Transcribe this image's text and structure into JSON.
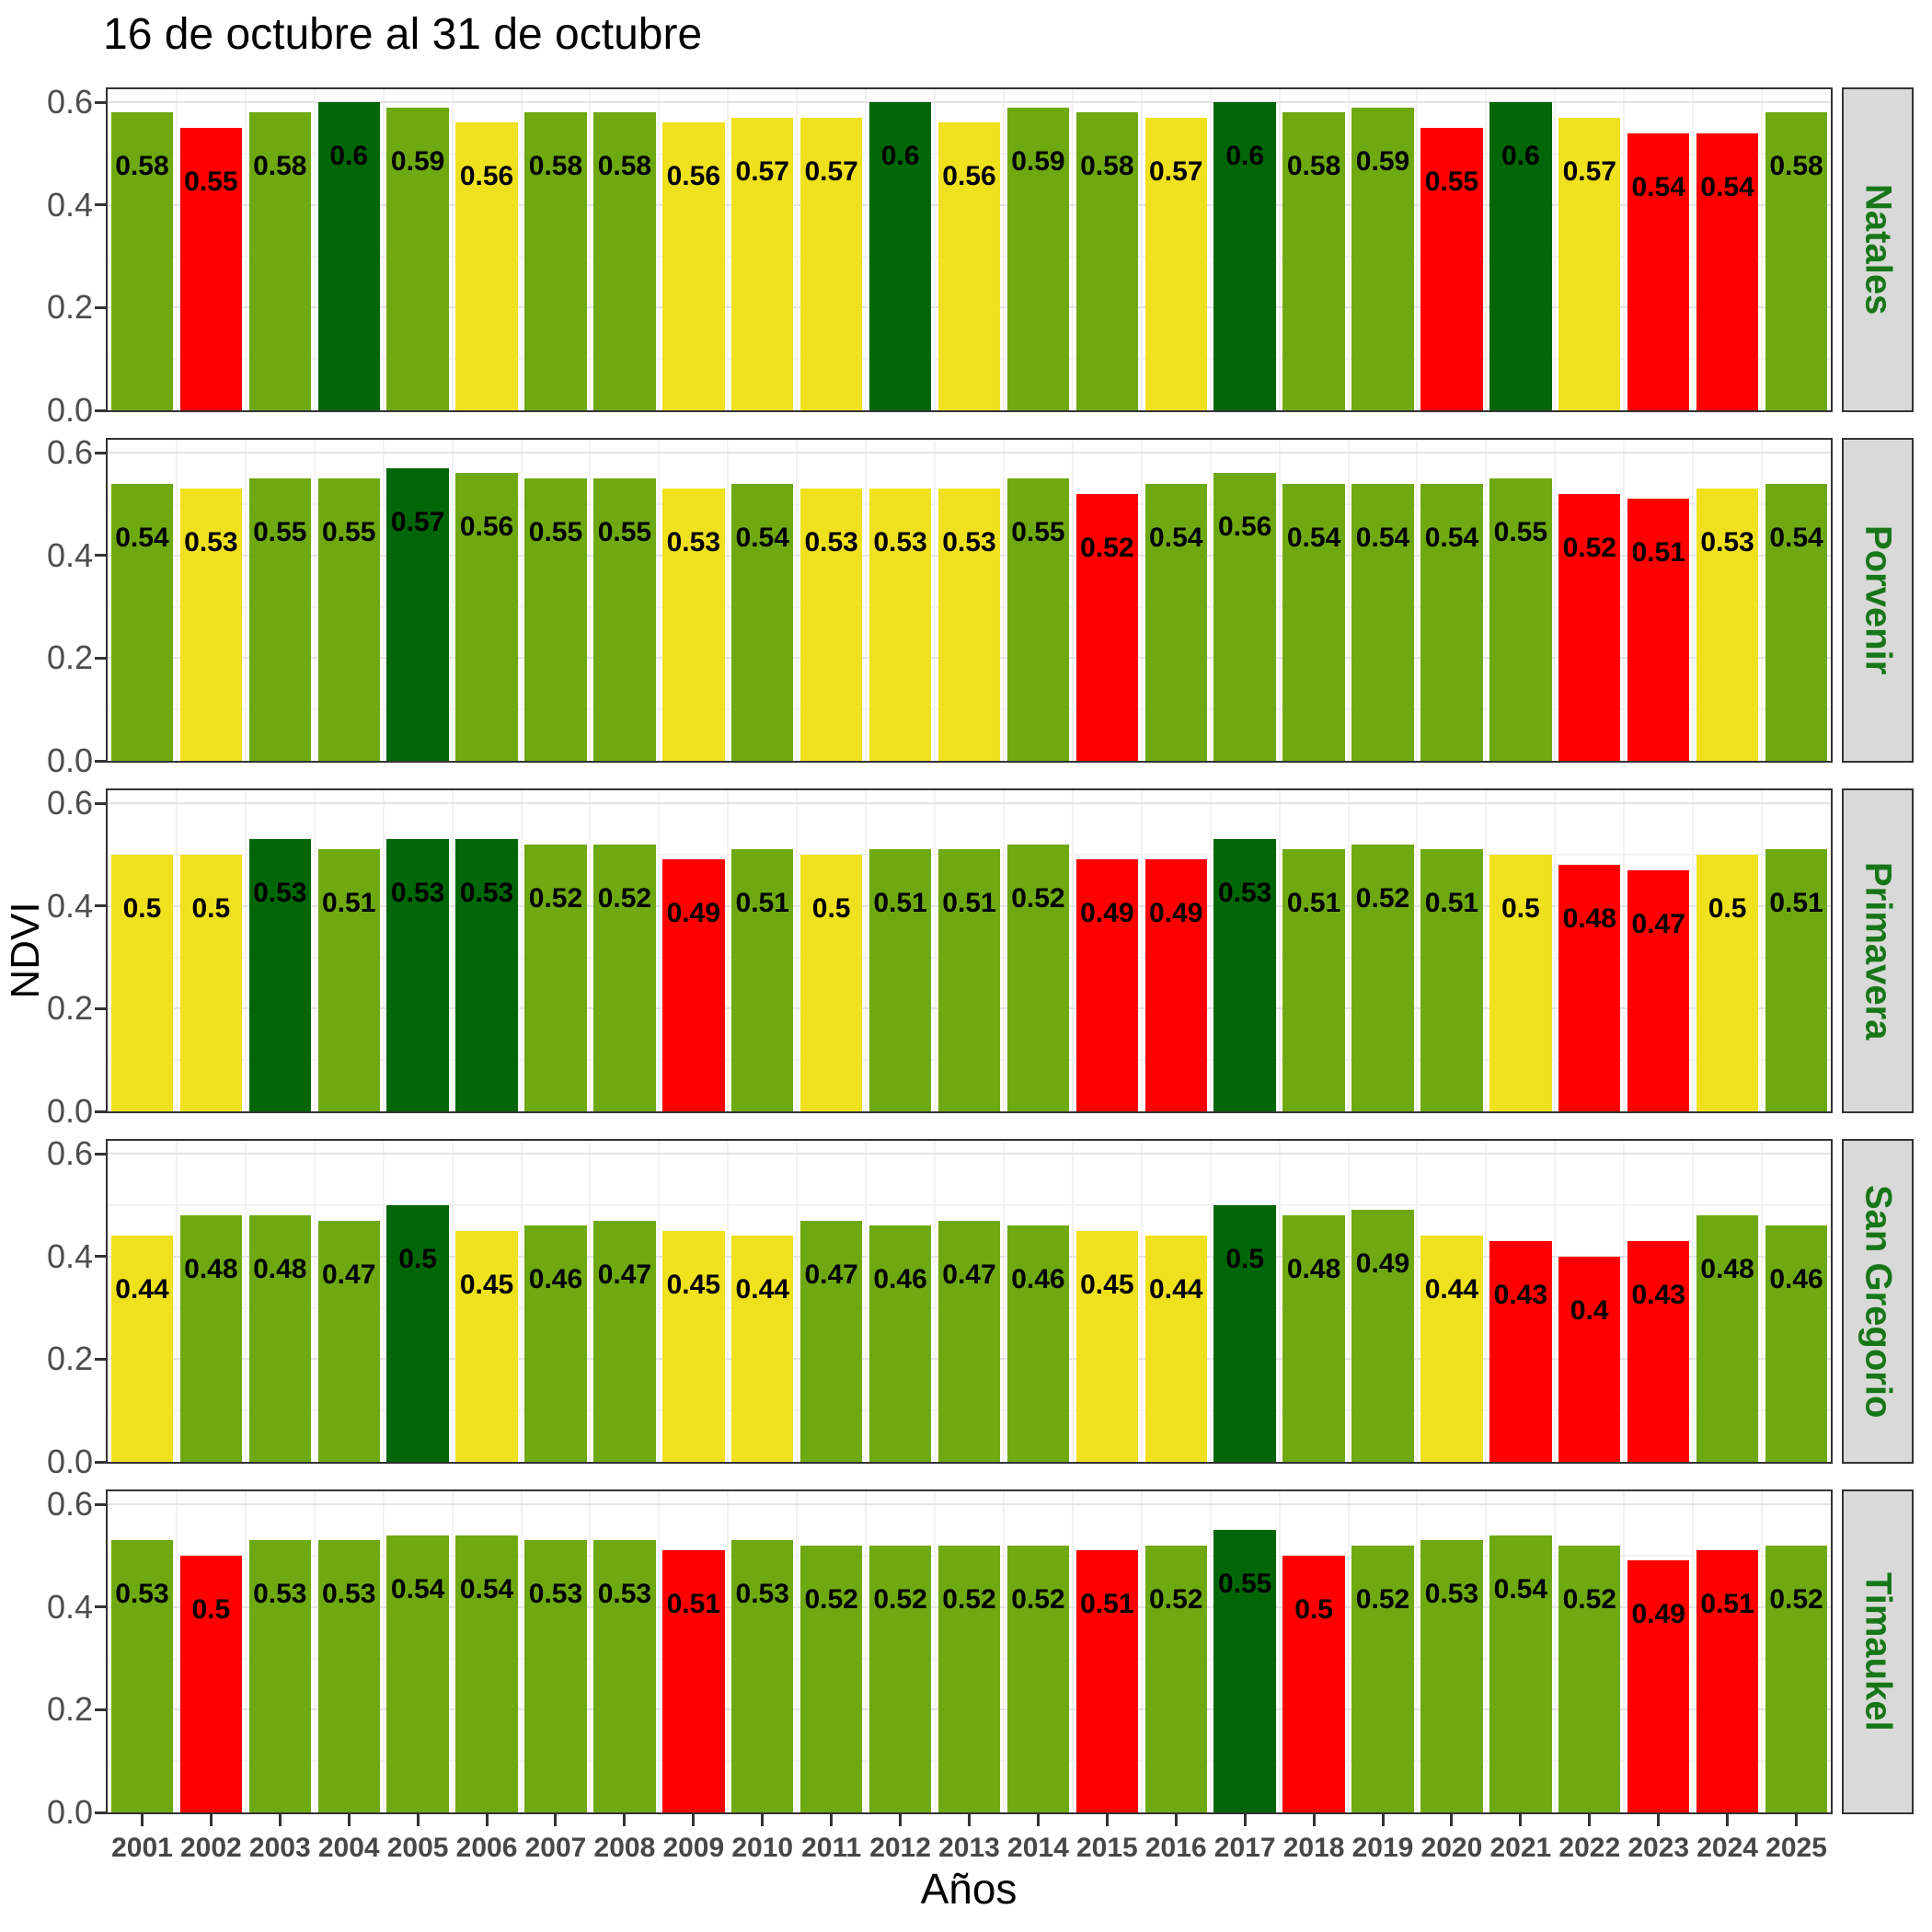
{
  "title": "16 de octubre al 31 de octubre",
  "x_axis_label": "Años",
  "y_axis_label": "NDVI",
  "y_ticks": [
    "0.6",
    "0.4",
    "0.2",
    "0.0"
  ],
  "colors": {
    "darkgreen": "#006607",
    "green": "#6FA912",
    "yellow": "#F0E11E",
    "red": "#FF0000",
    "strip_bg": "#D9D9D9",
    "strip_text": "#177718",
    "panel_border": "#333333",
    "grid_major": "#E4E4E4",
    "grid_minor": "#F2F2F2",
    "axis_text_y": "#4D4D4D",
    "axis_text_x": "#474747",
    "bar_label": "#000000"
  },
  "chart_data": {
    "type": "bar",
    "title": "16 de octubre al 31 de octubre",
    "xlabel": "Años",
    "ylabel": "NDVI",
    "ylim": [
      0,
      0.6
    ],
    "grid": true,
    "facet_strip_position": "right",
    "categories": [
      "2001",
      "2002",
      "2003",
      "2004",
      "2005",
      "2006",
      "2007",
      "2008",
      "2009",
      "2010",
      "2011",
      "2012",
      "2013",
      "2014",
      "2015",
      "2016",
      "2017",
      "2018",
      "2019",
      "2020",
      "2021",
      "2022",
      "2023",
      "2024",
      "2025"
    ],
    "facets": [
      {
        "label": "Natales",
        "values": [
          0.58,
          0.55,
          0.58,
          0.6,
          0.59,
          0.56,
          0.58,
          0.58,
          0.56,
          0.57,
          0.57,
          0.6,
          0.56,
          0.59,
          0.58,
          0.57,
          0.6,
          0.58,
          0.59,
          0.55,
          0.6,
          0.57,
          0.54,
          0.54,
          0.58
        ],
        "bar_colors": [
          "green",
          "red",
          "green",
          "darkgreen",
          "green",
          "yellow",
          "green",
          "green",
          "yellow",
          "yellow",
          "yellow",
          "darkgreen",
          "yellow",
          "green",
          "green",
          "yellow",
          "darkgreen",
          "green",
          "green",
          "red",
          "darkgreen",
          "yellow",
          "red",
          "red",
          "green"
        ]
      },
      {
        "label": "Porvenir",
        "values": [
          0.54,
          0.53,
          0.55,
          0.55,
          0.57,
          0.56,
          0.55,
          0.55,
          0.53,
          0.54,
          0.53,
          0.53,
          0.53,
          0.55,
          0.52,
          0.54,
          0.56,
          0.54,
          0.54,
          0.54,
          0.55,
          0.52,
          0.51,
          0.53,
          0.54
        ],
        "bar_colors": [
          "green",
          "yellow",
          "green",
          "green",
          "darkgreen",
          "green",
          "green",
          "green",
          "yellow",
          "green",
          "yellow",
          "yellow",
          "yellow",
          "green",
          "red",
          "green",
          "green",
          "green",
          "green",
          "green",
          "green",
          "red",
          "red",
          "yellow",
          "green"
        ]
      },
      {
        "label": "Primavera",
        "values": [
          0.5,
          0.5,
          0.53,
          0.51,
          0.53,
          0.53,
          0.52,
          0.52,
          0.49,
          0.51,
          0.5,
          0.51,
          0.51,
          0.52,
          0.49,
          0.49,
          0.53,
          0.51,
          0.52,
          0.51,
          0.5,
          0.48,
          0.47,
          0.5,
          0.51
        ],
        "bar_colors": [
          "yellow",
          "yellow",
          "darkgreen",
          "green",
          "darkgreen",
          "darkgreen",
          "green",
          "green",
          "red",
          "green",
          "yellow",
          "green",
          "green",
          "green",
          "red",
          "red",
          "darkgreen",
          "green",
          "green",
          "green",
          "yellow",
          "red",
          "red",
          "yellow",
          "green"
        ]
      },
      {
        "label": "San Gregorio",
        "values": [
          0.44,
          0.48,
          0.48,
          0.47,
          0.5,
          0.45,
          0.46,
          0.47,
          0.45,
          0.44,
          0.47,
          0.46,
          0.47,
          0.46,
          0.45,
          0.44,
          0.5,
          0.48,
          0.49,
          0.44,
          0.43,
          0.4,
          0.43,
          0.48,
          0.46
        ],
        "bar_colors": [
          "yellow",
          "green",
          "green",
          "green",
          "darkgreen",
          "yellow",
          "green",
          "green",
          "yellow",
          "yellow",
          "green",
          "green",
          "green",
          "green",
          "yellow",
          "yellow",
          "darkgreen",
          "green",
          "green",
          "yellow",
          "red",
          "red",
          "red",
          "green",
          "green"
        ]
      },
      {
        "label": "Timaukel",
        "values": [
          0.53,
          0.5,
          0.53,
          0.53,
          0.54,
          0.54,
          0.53,
          0.53,
          0.51,
          0.53,
          0.52,
          0.52,
          0.52,
          0.52,
          0.51,
          0.52,
          0.55,
          0.5,
          0.52,
          0.53,
          0.54,
          0.52,
          0.49,
          0.51,
          0.52
        ],
        "bar_colors": [
          "green",
          "red",
          "green",
          "green",
          "green",
          "green",
          "green",
          "green",
          "red",
          "green",
          "green",
          "green",
          "green",
          "green",
          "red",
          "green",
          "darkgreen",
          "red",
          "green",
          "green",
          "green",
          "green",
          "red",
          "red",
          "green"
        ]
      }
    ]
  }
}
